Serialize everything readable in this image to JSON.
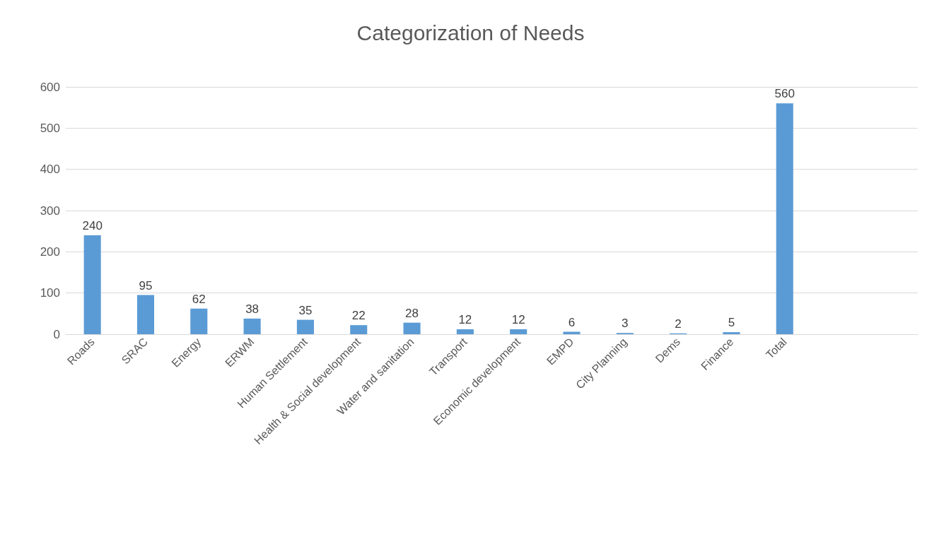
{
  "chart_data": {
    "type": "bar",
    "title": "Categorization of Needs",
    "categories": [
      "Roads",
      "SRAC",
      "Energy",
      "ERWM",
      "Human Settlement",
      "Health & Social development",
      "Water and sanitation",
      "Transport",
      "Economic development",
      "EMPD",
      "City Planning",
      "Dems",
      "Finance",
      "Total",
      null,
      null
    ],
    "values": [
      240,
      95,
      62,
      38,
      35,
      22,
      28,
      12,
      12,
      6,
      3,
      2,
      5,
      560,
      null,
      null
    ],
    "color": "#5b9bd5",
    "ylim": [
      0,
      600
    ],
    "yticks": [
      0,
      100,
      200,
      300,
      400,
      500,
      600
    ],
    "grid": true,
    "data_labels": true
  }
}
